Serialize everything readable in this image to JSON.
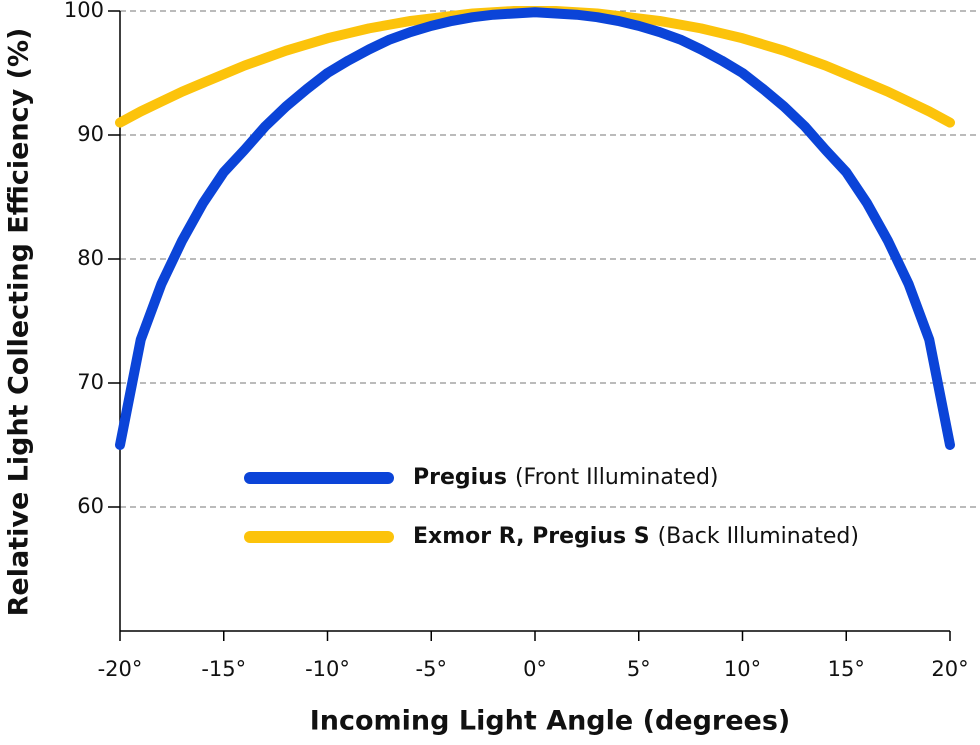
{
  "chart_data": {
    "type": "line",
    "x_label": "Incoming Light Angle (degrees)",
    "y_label": "Relative Light Collecting Efficiency (%)",
    "x": [
      -20,
      -19,
      -18,
      -17,
      -16,
      -15,
      -14,
      -13,
      -12,
      -11,
      -10,
      -9,
      -8,
      -7,
      -6,
      -5,
      -4,
      -3,
      -2,
      -1,
      0,
      1,
      2,
      3,
      4,
      5,
      6,
      7,
      8,
      9,
      10,
      11,
      12,
      13,
      14,
      15,
      16,
      17,
      18,
      19,
      20
    ],
    "series": [
      {
        "name": "Pregius",
        "detail": "(Front Illuminated)",
        "color": "#0b44d8",
        "values": [
          65,
          73.5,
          78,
          81.5,
          84.5,
          87,
          88.8,
          90.7,
          92.3,
          93.7,
          95,
          96,
          96.9,
          97.7,
          98.3,
          98.8,
          99.2,
          99.5,
          99.7,
          99.8,
          99.9,
          99.8,
          99.7,
          99.5,
          99.2,
          98.8,
          98.3,
          97.7,
          96.9,
          96,
          95,
          93.7,
          92.3,
          90.7,
          88.8,
          87,
          84.5,
          81.5,
          78,
          73.5,
          65
        ]
      },
      {
        "name": "Exmor R, Pregius S",
        "detail": "(Back Illuminated)",
        "color": "#fcc30b",
        "values": [
          91,
          91.9,
          92.7,
          93.5,
          94.2,
          94.9,
          95.6,
          96.2,
          96.8,
          97.3,
          97.8,
          98.2,
          98.6,
          98.9,
          99.2,
          99.4,
          99.6,
          99.8,
          99.9,
          100,
          100,
          100,
          99.9,
          99.8,
          99.6,
          99.4,
          99.2,
          98.9,
          98.6,
          98.2,
          97.8,
          97.3,
          96.8,
          96.2,
          95.6,
          94.9,
          94.2,
          93.5,
          92.7,
          91.9,
          91
        ]
      }
    ],
    "xlim": [
      -20,
      20
    ],
    "ylim": [
      50,
      100
    ],
    "xticks": [
      {
        "value": -20,
        "label": "-20°"
      },
      {
        "value": -15,
        "label": "-15°"
      },
      {
        "value": -10,
        "label": "-10°"
      },
      {
        "value": -5,
        "label": "-5°"
      },
      {
        "value": 0,
        "label": "0°"
      },
      {
        "value": 5,
        "label": "5°"
      },
      {
        "value": 10,
        "label": "10°"
      },
      {
        "value": 15,
        "label": "15°"
      },
      {
        "value": 20,
        "label": "20°"
      }
    ],
    "yticks": [
      60,
      70,
      80,
      90,
      100
    ],
    "grid": true
  }
}
